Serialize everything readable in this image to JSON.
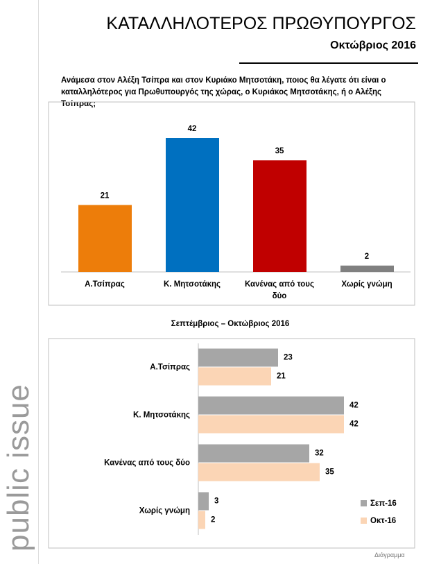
{
  "header": {
    "title": "ΚΑΤΑΛΛΗΛΟΤΕΡΟΣ ΠΡΩΘΥΠΟΥΡΓΟΣ",
    "subtitle": "Οκτώβριος 2016"
  },
  "question": "Ανάμεσα στον Αλέξη Τσίπρα και στον Κυριάκο Μητσοτάκη, ποιος θα λέγατε ότι είναι ο καταλληλότερος για Πρωθυπουργός της χώρας, ο Κυριάκος Μητσοτάκης, ή ο Αλέξης Τσίπρας;",
  "brand": "public issue",
  "footer": "Διάγραμμα",
  "chart_data": [
    {
      "type": "bar",
      "categories": [
        "Α.Τσίπρας",
        "Κ. Μητσοτάκης",
        "Κανένας από τους δύο",
        "Χωρίς γνώμη"
      ],
      "values": [
        21,
        42,
        35,
        2
      ],
      "colors": [
        "#ED7D0A",
        "#0070C0",
        "#C00000",
        "#808080"
      ]
    },
    {
      "type": "barh",
      "title": "Σεπτέμβριος – Οκτώβριος 2016",
      "categories": [
        "Α.Τσίπρας",
        "Κ. Μητσοτάκης",
        "Κανένας από τους δύο",
        "Χωρίς γνώμη"
      ],
      "series": [
        {
          "name": "Σεπ-16",
          "color": "#A6A6A6",
          "values": [
            23,
            42,
            32,
            3
          ]
        },
        {
          "name": "Οκτ-16",
          "color": "#FBD5B5",
          "values": [
            21,
            42,
            35,
            2
          ]
        }
      ],
      "legend": "lower right"
    }
  ]
}
